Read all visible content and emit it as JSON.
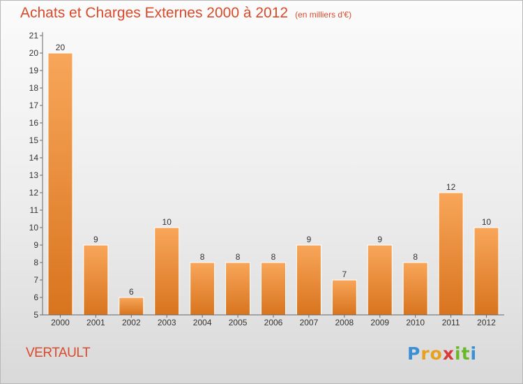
{
  "chart_title": "Achats et Charges Externes 2000 à 2012",
  "chart_subtitle": "(en milliers d'€)",
  "locality": "VERTAULT",
  "brand": {
    "letters": [
      "P",
      "r",
      "o",
      "x",
      "i",
      "t",
      "i"
    ],
    "colors": [
      "#3a8fd6",
      "#e8a020",
      "#e8a020",
      "#d83a3a",
      "#6ab82a",
      "#6ab82a",
      "#3a8fd6"
    ]
  },
  "colors": {
    "title": "#d84a2a",
    "bar_top": "#f8a65a",
    "bar_bottom": "#d8741e",
    "axis": "#666666",
    "label": "#333333"
  },
  "chart_data": {
    "type": "bar",
    "title": "Achats et Charges Externes 2000 à 2012",
    "subtitle": "(en milliers d'€)",
    "xlabel": "",
    "ylabel": "",
    "categories": [
      "2000",
      "2001",
      "2002",
      "2003",
      "2004",
      "2005",
      "2006",
      "2007",
      "2008",
      "2009",
      "2010",
      "2011",
      "2012"
    ],
    "values": [
      20,
      9,
      6,
      10,
      8,
      8,
      8,
      9,
      7,
      9,
      8,
      12,
      10
    ],
    "data_labels": [
      "20",
      "9",
      "6",
      "10",
      "8",
      "8",
      "8",
      "9",
      "7",
      "9",
      "8",
      "12",
      "10"
    ],
    "yticks": [
      "5",
      "6",
      "7",
      "8",
      "9",
      "10",
      "11",
      "12",
      "13",
      "14",
      "15",
      "16",
      "17",
      "18",
      "19",
      "20",
      "21"
    ],
    "ylim": [
      5,
      21
    ],
    "grid": false,
    "legend": "none"
  }
}
